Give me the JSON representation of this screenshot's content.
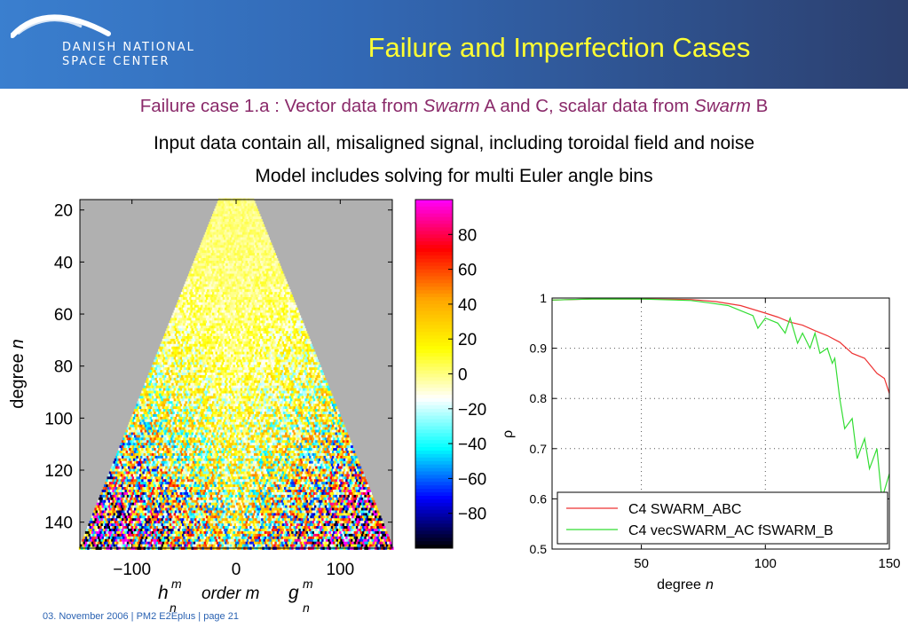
{
  "header": {
    "logo_line1": "DANISH NATIONAL",
    "logo_line2": "SPACE CENTER",
    "title": "Failure and Imperfection Cases"
  },
  "subtitle": {
    "part1": "Failure case 1.a : Vector data from ",
    "swarm1": "Swarm",
    "part2": " A and C, scalar data from ",
    "swarm2": "Swarm",
    "part3": " B"
  },
  "description": {
    "line1": "Input data contain all, misaligned signal, including toroidal field and noise",
    "line2": "Model includes solving for multi Euler angle bins"
  },
  "footer": {
    "text": "03. November  2006 | PM2 E2Eplus | page 21"
  },
  "colors": {
    "header_start": "#3a7fcf",
    "header_end": "#2c3f6e",
    "title": "#ffff33",
    "subtitle": "#8a2a6a",
    "footer": "#2a62b2",
    "series_abc": "#ee3333",
    "series_vec": "#33dd33"
  },
  "chart_data": [
    {
      "type": "heatmap",
      "description_axes": "degree n vs order m",
      "ylabel": "degree",
      "ylabel_var": "n",
      "xlabel_h": "h",
      "xlabel_mid": "order m",
      "xlabel_g": "g",
      "label_sup": "m",
      "label_sub": "n",
      "x_ticks": [
        "−100",
        "0",
        "100"
      ],
      "x_tick_values": [
        -100,
        0,
        100
      ],
      "y_ticks": [
        "20",
        "40",
        "60",
        "80",
        "100",
        "120",
        "140"
      ],
      "y_tick_values": [
        20,
        40,
        60,
        80,
        100,
        120,
        140
      ],
      "xlim": [
        -150,
        150
      ],
      "ylim": [
        16,
        150
      ],
      "colorbar_ticks": [
        "80",
        "60",
        "40",
        "20",
        "0",
        "−20",
        "−40",
        "−60",
        "−80"
      ],
      "colorbar_values": [
        80,
        60,
        40,
        20,
        0,
        -20,
        -40,
        -60,
        -80
      ],
      "colorbar_range": [
        -100,
        100
      ],
      "colormap": [
        "#ff00ff",
        "#ff0000",
        "#ffa500",
        "#ffff00",
        "#ffffff",
        "#00ffff",
        "#0000ff",
        "#000000"
      ]
    },
    {
      "type": "line",
      "xlabel": "degree",
      "xlabel_var": "n",
      "ylabel": "ρ",
      "xlim": [
        14,
        150
      ],
      "ylim": [
        0.5,
        1
      ],
      "x_ticks": [
        "50",
        "100",
        "150"
      ],
      "x_tick_values": [
        50,
        100,
        150
      ],
      "y_ticks": [
        "0.5",
        "0.6",
        "0.7",
        "0.8",
        "0.9",
        "1"
      ],
      "y_tick_values": [
        0.5,
        0.6,
        0.7,
        0.8,
        0.9,
        1
      ],
      "grid": true,
      "legend_position": "bottom-left",
      "series": [
        {
          "name": "C4 SWARM_ABC",
          "color": "#ee3333",
          "x": [
            14,
            30,
            50,
            70,
            80,
            90,
            100,
            105,
            110,
            115,
            120,
            125,
            130,
            135,
            140,
            145,
            148,
            150
          ],
          "y": [
            0.996,
            0.998,
            0.998,
            0.997,
            0.993,
            0.985,
            0.97,
            0.962,
            0.952,
            0.946,
            0.935,
            0.925,
            0.912,
            0.89,
            0.88,
            0.85,
            0.84,
            0.81
          ]
        },
        {
          "name": "C4 vecSWARM_AC fSWARM_B",
          "color": "#33dd33",
          "x": [
            14,
            30,
            50,
            70,
            78,
            85,
            90,
            95,
            97,
            100,
            105,
            108,
            110,
            113,
            115,
            118,
            120,
            122,
            125,
            127,
            128,
            130,
            132,
            135,
            137,
            140,
            142,
            145,
            147,
            150
          ],
          "y": [
            0.996,
            0.998,
            0.998,
            0.995,
            0.99,
            0.985,
            0.975,
            0.965,
            0.94,
            0.96,
            0.95,
            0.93,
            0.96,
            0.91,
            0.93,
            0.9,
            0.93,
            0.89,
            0.9,
            0.87,
            0.88,
            0.8,
            0.74,
            0.76,
            0.68,
            0.72,
            0.66,
            0.7,
            0.6,
            0.65
          ]
        }
      ]
    }
  ]
}
